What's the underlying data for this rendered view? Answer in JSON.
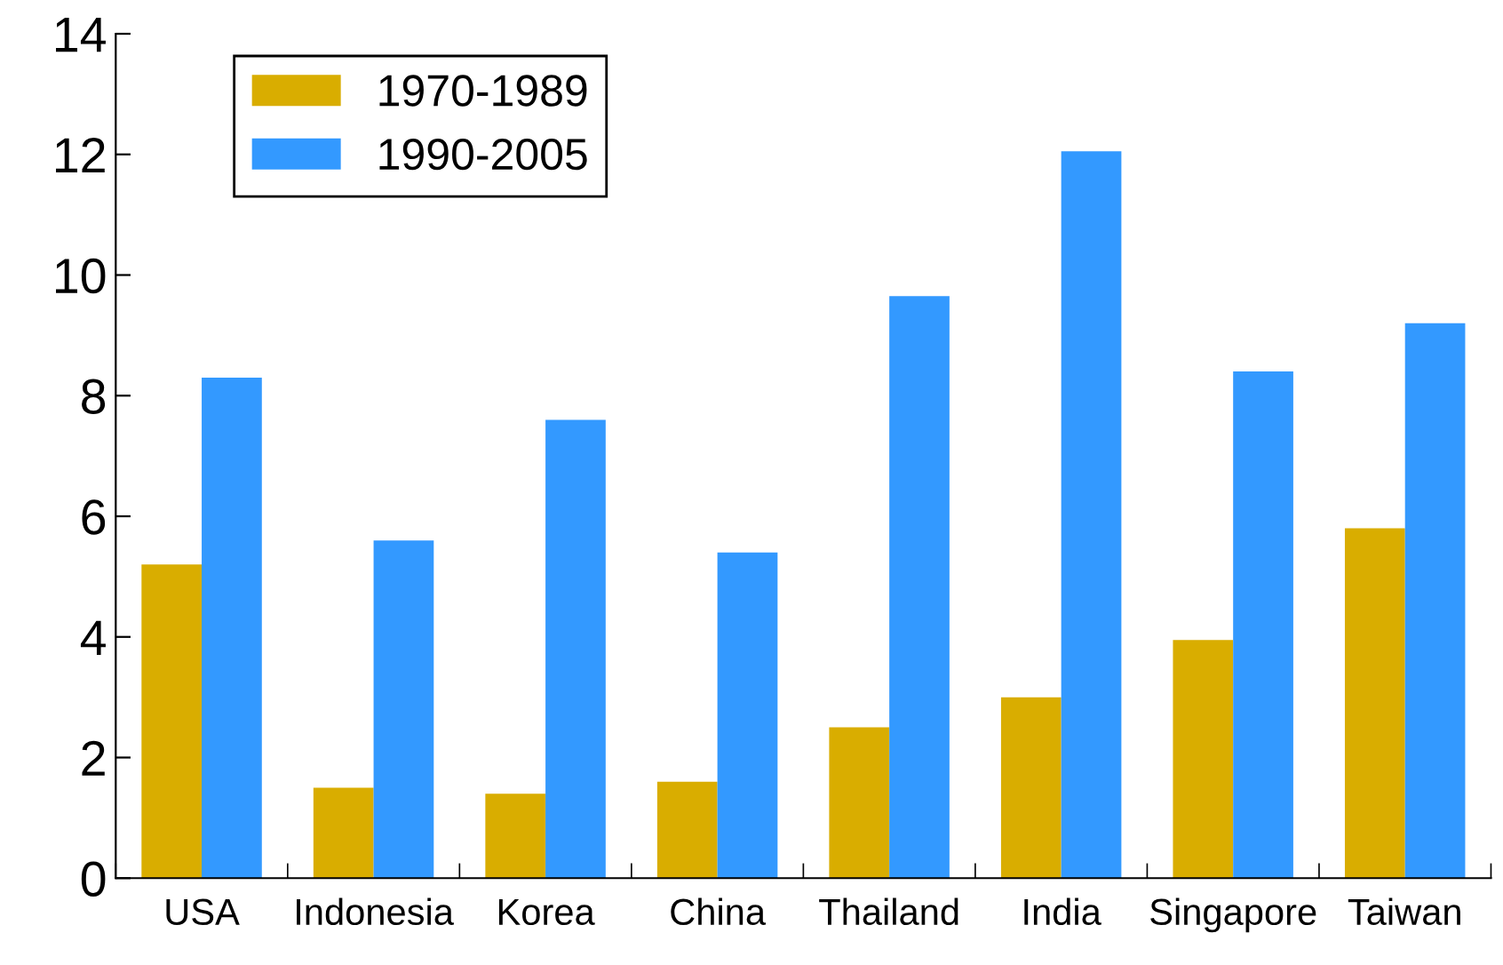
{
  "chart_data": {
    "type": "bar",
    "categories": [
      "USA",
      "Indonesia",
      "Korea",
      "China",
      "Thailand",
      "India",
      "Singapore",
      "Taiwan"
    ],
    "series": [
      {
        "name": "1970-1989",
        "color": "#d9ad00",
        "values": [
          5.2,
          1.5,
          1.4,
          1.6,
          2.5,
          3.0,
          3.95,
          5.8
        ]
      },
      {
        "name": "1990-2005",
        "color": "#3399ff",
        "values": [
          8.3,
          5.6,
          7.6,
          5.4,
          9.65,
          12.05,
          8.4,
          9.2
        ]
      }
    ],
    "ylim": [
      0,
      14
    ],
    "yticks": [
      0,
      2,
      4,
      6,
      8,
      10,
      12,
      14
    ],
    "grid": false,
    "legend": "top left"
  }
}
